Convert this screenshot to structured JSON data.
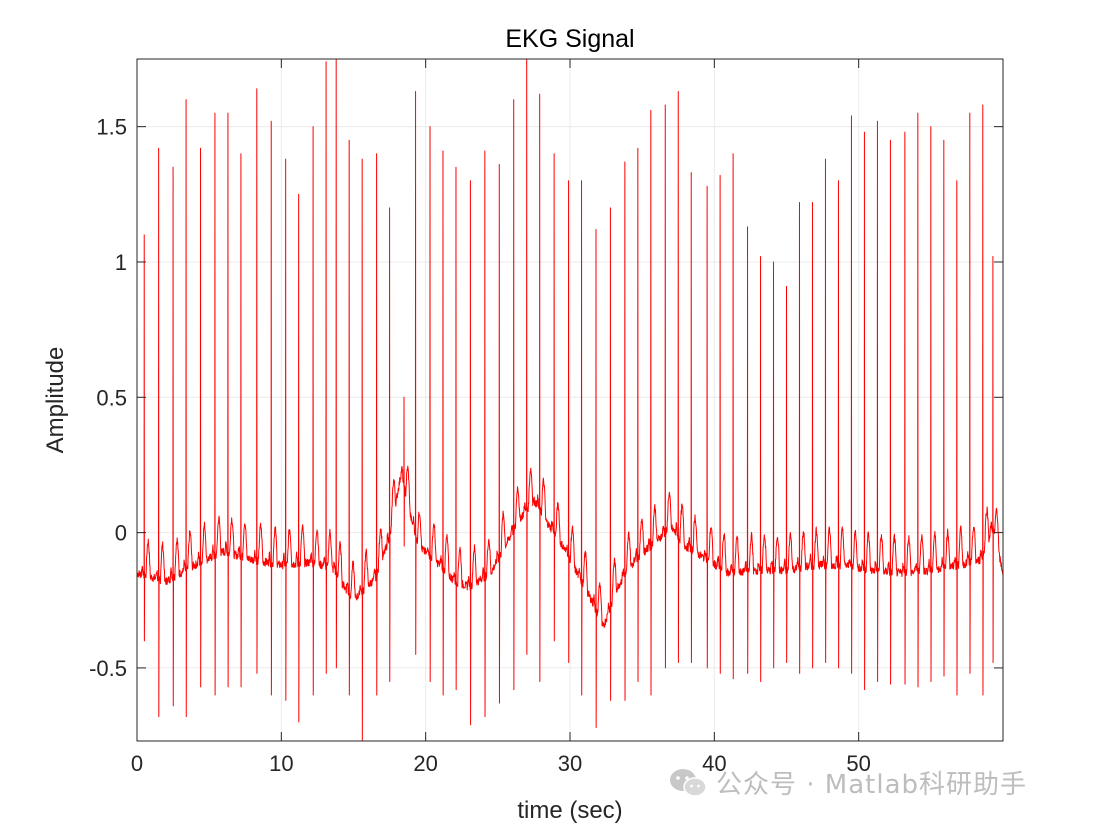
{
  "chart_data": {
    "type": "line",
    "title": "EKG Signal",
    "xlabel": "time (sec)",
    "ylabel": "Amplitude",
    "xlim": [
      0,
      60
    ],
    "ylim": [
      -0.77,
      1.75
    ],
    "xticks": [
      0,
      10,
      20,
      30,
      40,
      50
    ],
    "xtick_labels": [
      "0",
      "10",
      "20",
      "30",
      "40",
      "50"
    ],
    "yticks": [
      -0.5,
      0,
      0.5,
      1,
      1.5
    ],
    "ytick_labels": [
      "-0.5",
      "0",
      "0.5",
      "1",
      "1.5"
    ],
    "grid": true,
    "legend": false,
    "series": [
      {
        "color": "#ff0000",
        "baseline": [
          [
            0,
            -0.15
          ],
          [
            2,
            -0.18
          ],
          [
            4,
            -0.12
          ],
          [
            6,
            -0.07
          ],
          [
            8,
            -0.1
          ],
          [
            10,
            -0.12
          ],
          [
            12,
            -0.11
          ],
          [
            13.5,
            -0.13
          ],
          [
            15,
            -0.25
          ],
          [
            16.5,
            -0.17
          ],
          [
            17.5,
            -0.02
          ],
          [
            18.3,
            0.22
          ],
          [
            19,
            0.05
          ],
          [
            19.5,
            -0.05
          ],
          [
            21,
            -0.12
          ],
          [
            22,
            -0.18
          ],
          [
            23,
            -0.2
          ],
          [
            24.5,
            -0.15
          ],
          [
            25.5,
            -0.05
          ],
          [
            26.5,
            0.05
          ],
          [
            27.5,
            0.12
          ],
          [
            28.5,
            0.03
          ],
          [
            29.5,
            -0.05
          ],
          [
            30.5,
            -0.15
          ],
          [
            31.5,
            -0.25
          ],
          [
            32.3,
            -0.35
          ],
          [
            33.3,
            -0.2
          ],
          [
            34.5,
            -0.1
          ],
          [
            36,
            -0.03
          ],
          [
            37,
            0.02
          ],
          [
            38,
            -0.05
          ],
          [
            39.5,
            -0.1
          ],
          [
            41,
            -0.15
          ],
          [
            43,
            -0.14
          ],
          [
            45,
            -0.14
          ],
          [
            47,
            -0.12
          ],
          [
            49,
            -0.12
          ],
          [
            51,
            -0.14
          ],
          [
            53,
            -0.15
          ],
          [
            55,
            -0.14
          ],
          [
            57,
            -0.12
          ],
          [
            58.5,
            -0.1
          ],
          [
            59.3,
            0.02
          ],
          [
            60,
            -0.15
          ]
        ],
        "beats": [
          [
            0.5,
            1.1,
            -0.4
          ],
          [
            1.5,
            1.42,
            -0.68
          ],
          [
            2.5,
            1.35,
            -0.64
          ],
          [
            3.4,
            1.6,
            -0.68
          ],
          [
            4.4,
            1.42,
            -0.57
          ],
          [
            5.4,
            1.55,
            -0.6
          ],
          [
            6.3,
            1.55,
            -0.57
          ],
          [
            7.2,
            1.4,
            -0.57
          ],
          [
            8.3,
            1.64,
            -0.52
          ],
          [
            9.3,
            1.52,
            -0.6
          ],
          [
            10.3,
            1.38,
            -0.62
          ],
          [
            11.2,
            1.25,
            -0.7
          ],
          [
            12.2,
            1.5,
            -0.6
          ],
          [
            13.1,
            1.74,
            -0.52
          ],
          [
            13.8,
            1.75,
            -0.5
          ],
          [
            14.7,
            1.45,
            -0.6
          ],
          [
            15.6,
            1.38,
            -0.77
          ],
          [
            16.6,
            1.4,
            -0.6
          ],
          [
            17.5,
            1.2,
            -0.55
          ],
          [
            18.5,
            0.5,
            -0.05
          ],
          [
            19.3,
            1.63,
            -0.45
          ],
          [
            20.3,
            1.5,
            -0.55
          ],
          [
            21.2,
            1.41,
            -0.6
          ],
          [
            22.1,
            1.35,
            -0.58
          ],
          [
            23.1,
            1.3,
            -0.71
          ],
          [
            24.1,
            1.41,
            -0.68
          ],
          [
            25.1,
            1.36,
            -0.63
          ],
          [
            26.1,
            1.6,
            -0.58
          ],
          [
            27.0,
            1.75,
            -0.45
          ],
          [
            27.9,
            1.62,
            -0.55
          ],
          [
            28.9,
            1.4,
            -0.4
          ],
          [
            29.9,
            1.3,
            -0.48
          ],
          [
            30.8,
            1.3,
            -0.6
          ],
          [
            31.8,
            1.12,
            -0.72
          ],
          [
            32.8,
            1.2,
            -0.62
          ],
          [
            33.8,
            1.37,
            -0.62
          ],
          [
            34.7,
            1.42,
            -0.55
          ],
          [
            35.6,
            1.56,
            -0.6
          ],
          [
            36.6,
            1.58,
            -0.5
          ],
          [
            37.5,
            1.63,
            -0.48
          ],
          [
            38.4,
            1.33,
            -0.48
          ],
          [
            39.5,
            1.28,
            -0.5
          ],
          [
            40.4,
            1.32,
            -0.52
          ],
          [
            41.3,
            1.4,
            -0.54
          ],
          [
            42.3,
            1.13,
            -0.52
          ],
          [
            43.2,
            1.02,
            -0.55
          ],
          [
            44.1,
            1.0,
            -0.5
          ],
          [
            45.0,
            0.91,
            -0.48
          ],
          [
            45.9,
            1.22,
            -0.52
          ],
          [
            46.8,
            1.22,
            -0.5
          ],
          [
            47.7,
            1.38,
            -0.48
          ],
          [
            48.6,
            1.3,
            -0.5
          ],
          [
            49.5,
            1.54,
            -0.52
          ],
          [
            50.4,
            1.48,
            -0.58
          ],
          [
            51.3,
            1.52,
            -0.55
          ],
          [
            52.2,
            1.45,
            -0.56
          ],
          [
            53.2,
            1.48,
            -0.56
          ],
          [
            54.1,
            1.55,
            -0.57
          ],
          [
            55.0,
            1.5,
            -0.55
          ],
          [
            55.9,
            1.45,
            -0.53
          ],
          [
            56.8,
            1.3,
            -0.6
          ],
          [
            57.7,
            1.55,
            -0.52
          ],
          [
            58.6,
            1.58,
            -0.6
          ],
          [
            59.3,
            1.02,
            -0.48
          ]
        ]
      }
    ]
  },
  "watermark": {
    "icon": "wechat-icon",
    "text": "公众号 · Matlab科研助手"
  }
}
